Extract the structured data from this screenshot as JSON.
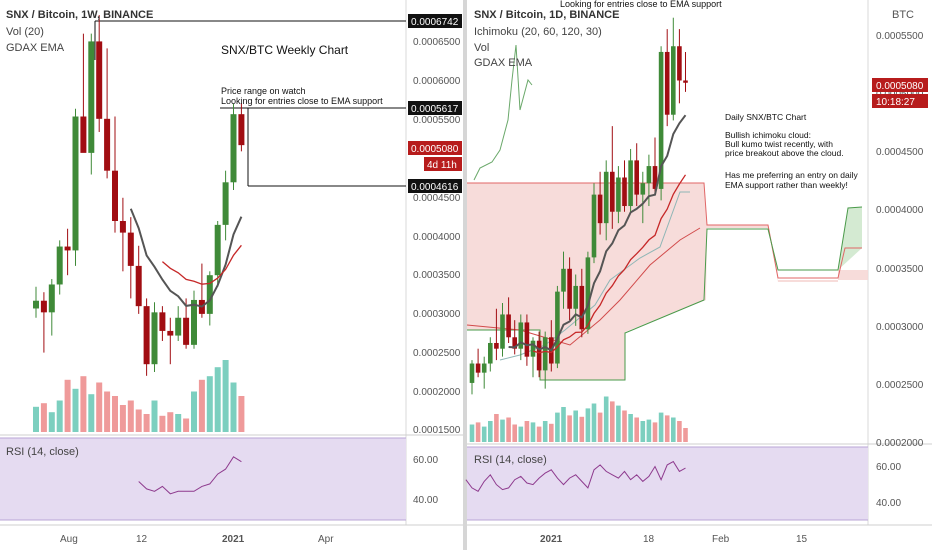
{
  "left_chart": {
    "header": "SNX / Bitcoin, 1W, BINANCE",
    "indicators": [
      "Vol (20)",
      "GDAX EMA"
    ],
    "annotation_title": "SNX/BTC Weekly Chart",
    "annotation_note": [
      "Price range on watch",
      "Looking for entries close to EMA support"
    ],
    "price_ticks": [
      "0.0006500",
      "0.0006000",
      "0.0005500",
      "0.0004500",
      "0.0004000",
      "0.0003500",
      "0.0003000",
      "0.0002500",
      "0.0002000",
      "0.0001500"
    ],
    "price_tags": [
      {
        "text": "0.0006742",
        "style": "dark"
      },
      {
        "text": "0.0005617",
        "style": "dark"
      },
      {
        "text": "0.0005080",
        "style": "red"
      },
      {
        "text": "4d 11h",
        "style": "red"
      },
      {
        "text": "0.0004616",
        "style": "dark"
      }
    ],
    "rsi_label": "RSI (14, close)",
    "rsi_ticks": [
      "60.00",
      "40.00"
    ],
    "time_ticks": [
      "Aug",
      "12",
      "2021",
      "Apr"
    ]
  },
  "right_chart": {
    "header": "SNX / Bitcoin, 1D, BINANCE",
    "indicators": [
      "Ichimoku (20, 60, 120, 30)",
      "Vol",
      "GDAX EMA"
    ],
    "top_note": "Looking for entries close to EMA support",
    "currency": "BTC",
    "notes": [
      "Daily SNX/BTC Chart",
      "Bullish ichimoku cloud:",
      "Bull kumo twist recently, with",
      "price breakout above the cloud.",
      "Has me preferring an entry on daily",
      "EMA support rather than weekly!"
    ],
    "price_ticks": [
      "0.0005500",
      "0.0005000",
      "0.0004500",
      "0.0004000",
      "0.0003500",
      "0.0003000",
      "0.0002500",
      "0.0002000"
    ],
    "price_tags": [
      {
        "text": "0.0005080",
        "style": "red"
      },
      {
        "text": "10:18:27",
        "style": "red"
      }
    ],
    "rsi_label": "RSI (14, close)",
    "rsi_ticks": [
      "60.00",
      "40.00"
    ],
    "time_ticks": [
      "2021",
      "18",
      "Feb",
      "15"
    ]
  },
  "colors": {
    "up": "#3f8a38",
    "down": "#a10d12",
    "vol_up": "#7ccfbf",
    "vol_down": "#ef9a9a",
    "ema": "#555555",
    "rsi_bg": "#e5dbf1",
    "tag_dark": "#111111",
    "tag_red": "#b71c1c"
  },
  "chart_data": [
    {
      "type": "candlestick",
      "title": "SNX/BTC Weekly Chart",
      "timeframe": "1W",
      "y_range": [
        0.00014,
        0.00068
      ],
      "candles": [
        {
          "o": 0.000297,
          "h": 0.000325,
          "l": 0.000285,
          "c": 0.000307
        },
        {
          "o": 0.000307,
          "h": 0.000318,
          "l": 0.00024,
          "c": 0.000292
        },
        {
          "o": 0.000292,
          "h": 0.000335,
          "l": 0.000262,
          "c": 0.000328
        },
        {
          "o": 0.000328,
          "h": 0.000385,
          "l": 0.000315,
          "c": 0.000377
        },
        {
          "o": 0.000377,
          "h": 0.0004,
          "l": 0.00034,
          "c": 0.000372
        },
        {
          "o": 0.000372,
          "h": 0.000555,
          "l": 0.000352,
          "c": 0.000545
        },
        {
          "o": 0.000545,
          "h": 0.000652,
          "l": 0.0005,
          "c": 0.000498
        },
        {
          "o": 0.000498,
          "h": 0.000652,
          "l": 0.00047,
          "c": 0.000642
        },
        {
          "o": 0.000642,
          "h": 0.000676,
          "l": 0.000525,
          "c": 0.000542
        },
        {
          "o": 0.000542,
          "h": 0.000633,
          "l": 0.000465,
          "c": 0.000475
        },
        {
          "o": 0.000475,
          "h": 0.000545,
          "l": 0.000395,
          "c": 0.00041
        },
        {
          "o": 0.00041,
          "h": 0.00044,
          "l": 0.000345,
          "c": 0.000395
        },
        {
          "o": 0.000395,
          "h": 0.000415,
          "l": 0.00031,
          "c": 0.000352
        },
        {
          "o": 0.000352,
          "h": 0.000378,
          "l": 0.00029,
          "c": 0.0003
        },
        {
          "o": 0.0003,
          "h": 0.00031,
          "l": 0.00021,
          "c": 0.000225
        },
        {
          "o": 0.000225,
          "h": 0.000305,
          "l": 0.000215,
          "c": 0.000292
        },
        {
          "o": 0.000292,
          "h": 0.0003,
          "l": 0.000255,
          "c": 0.000268
        },
        {
          "o": 0.000268,
          "h": 0.000285,
          "l": 0.000225,
          "c": 0.000262
        },
        {
          "o": 0.000262,
          "h": 0.0003,
          "l": 0.000255,
          "c": 0.000285
        },
        {
          "o": 0.000285,
          "h": 0.00031,
          "l": 0.000245,
          "c": 0.00025
        },
        {
          "o": 0.00025,
          "h": 0.00032,
          "l": 0.000245,
          "c": 0.000308
        },
        {
          "o": 0.000308,
          "h": 0.000355,
          "l": 0.000285,
          "c": 0.00029
        },
        {
          "o": 0.00029,
          "h": 0.000345,
          "l": 0.000275,
          "c": 0.00034
        },
        {
          "o": 0.00034,
          "h": 0.00041,
          "l": 0.000325,
          "c": 0.000405
        },
        {
          "o": 0.000405,
          "h": 0.000475,
          "l": 0.000385,
          "c": 0.00046
        },
        {
          "o": 0.00046,
          "h": 0.000562,
          "l": 0.00045,
          "c": 0.000548
        },
        {
          "o": 0.000548,
          "h": 0.000562,
          "l": 0.0005,
          "c": 0.000508
        }
      ],
      "volume_relative": [
        0.28,
        0.32,
        0.22,
        0.35,
        0.58,
        0.48,
        0.62,
        0.42,
        0.55,
        0.45,
        0.4,
        0.3,
        0.35,
        0.25,
        0.2,
        0.35,
        0.18,
        0.22,
        0.2,
        0.15,
        0.45,
        0.58,
        0.62,
        0.72,
        0.8,
        0.55,
        0.4
      ],
      "rsi": [
        54.0,
        51.0,
        50.0,
        52.0,
        49.0,
        50.0,
        50.0,
        50.0,
        52.0,
        53.0,
        57.0,
        59.0,
        64.0,
        62.0
      ]
    },
    {
      "type": "candlestick",
      "title": "Daily SNX/BTC Chart",
      "timeframe": "1D",
      "y_range": [
        0.000195,
        0.00057
      ],
      "candles": [
        {
          "o": 0.000245,
          "h": 0.000265,
          "l": 0.000235,
          "c": 0.000262
        },
        {
          "o": 0.000262,
          "h": 0.000275,
          "l": 0.00025,
          "c": 0.000254
        },
        {
          "o": 0.000254,
          "h": 0.000268,
          "l": 0.00024,
          "c": 0.000262
        },
        {
          "o": 0.000262,
          "h": 0.000285,
          "l": 0.000255,
          "c": 0.00028
        },
        {
          "o": 0.00028,
          "h": 0.00031,
          "l": 0.000265,
          "c": 0.000275
        },
        {
          "o": 0.000275,
          "h": 0.000315,
          "l": 0.000268,
          "c": 0.000305
        },
        {
          "o": 0.000305,
          "h": 0.00032,
          "l": 0.00028,
          "c": 0.000285
        },
        {
          "o": 0.000285,
          "h": 0.0003,
          "l": 0.00027,
          "c": 0.000275
        },
        {
          "o": 0.000275,
          "h": 0.000305,
          "l": 0.000265,
          "c": 0.000298
        },
        {
          "o": 0.000298,
          "h": 0.000305,
          "l": 0.00026,
          "c": 0.000268
        },
        {
          "o": 0.000268,
          "h": 0.000285,
          "l": 0.00025,
          "c": 0.000282
        },
        {
          "o": 0.000282,
          "h": 0.00029,
          "l": 0.00025,
          "c": 0.000256
        },
        {
          "o": 0.000256,
          "h": 0.00029,
          "l": 0.00024,
          "c": 0.000285
        },
        {
          "o": 0.000285,
          "h": 0.0003,
          "l": 0.000255,
          "c": 0.000262
        },
        {
          "o": 0.000262,
          "h": 0.00033,
          "l": 0.000258,
          "c": 0.000325
        },
        {
          "o": 0.000325,
          "h": 0.00036,
          "l": 0.00031,
          "c": 0.000345
        },
        {
          "o": 0.000345,
          "h": 0.000355,
          "l": 0.0003,
          "c": 0.00031
        },
        {
          "o": 0.00031,
          "h": 0.00034,
          "l": 0.000295,
          "c": 0.00033
        },
        {
          "o": 0.00033,
          "h": 0.000345,
          "l": 0.000285,
          "c": 0.000292
        },
        {
          "o": 0.000292,
          "h": 0.00036,
          "l": 0.000288,
          "c": 0.000355
        },
        {
          "o": 0.000355,
          "h": 0.00042,
          "l": 0.00035,
          "c": 0.00041
        },
        {
          "o": 0.00041,
          "h": 0.00043,
          "l": 0.000375,
          "c": 0.000385
        },
        {
          "o": 0.000385,
          "h": 0.00044,
          "l": 0.00037,
          "c": 0.00043
        },
        {
          "o": 0.00043,
          "h": 0.00047,
          "l": 0.00038,
          "c": 0.000395
        },
        {
          "o": 0.000395,
          "h": 0.000435,
          "l": 0.000385,
          "c": 0.000425
        },
        {
          "o": 0.000425,
          "h": 0.00044,
          "l": 0.000395,
          "c": 0.0004
        },
        {
          "o": 0.0004,
          "h": 0.00045,
          "l": 0.000395,
          "c": 0.00044
        },
        {
          "o": 0.00044,
          "h": 0.000455,
          "l": 0.0004,
          "c": 0.00041
        },
        {
          "o": 0.00041,
          "h": 0.00043,
          "l": 0.000385,
          "c": 0.00042
        },
        {
          "o": 0.00042,
          "h": 0.000445,
          "l": 0.0004,
          "c": 0.000435
        },
        {
          "o": 0.000435,
          "h": 0.00046,
          "l": 0.00041,
          "c": 0.000415
        },
        {
          "o": 0.000415,
          "h": 0.00054,
          "l": 0.000405,
          "c": 0.000535
        },
        {
          "o": 0.000535,
          "h": 0.000555,
          "l": 0.00047,
          "c": 0.00048
        },
        {
          "o": 0.00048,
          "h": 0.000565,
          "l": 0.000475,
          "c": 0.00054
        },
        {
          "o": 0.00054,
          "h": 0.000555,
          "l": 0.00049,
          "c": 0.00051
        },
        {
          "o": 0.00051,
          "h": 0.000535,
          "l": 0.0005,
          "c": 0.000508
        }
      ],
      "volume_relative": [
        0.25,
        0.28,
        0.22,
        0.3,
        0.4,
        0.32,
        0.35,
        0.25,
        0.22,
        0.3,
        0.28,
        0.22,
        0.3,
        0.26,
        0.42,
        0.5,
        0.38,
        0.45,
        0.36,
        0.48,
        0.55,
        0.42,
        0.65,
        0.58,
        0.52,
        0.45,
        0.4,
        0.35,
        0.3,
        0.32,
        0.28,
        0.42,
        0.38,
        0.35,
        0.3,
        0.2
      ],
      "rsi": [
        57,
        52,
        50,
        56,
        60,
        54,
        51,
        52,
        57,
        59,
        55,
        54,
        58,
        61,
        63,
        58,
        54,
        58,
        60,
        56,
        52,
        63,
        66,
        62,
        60,
        58,
        62,
        57,
        60,
        56,
        59,
        65,
        57,
        66,
        68,
        62,
        64
      ]
    }
  ]
}
